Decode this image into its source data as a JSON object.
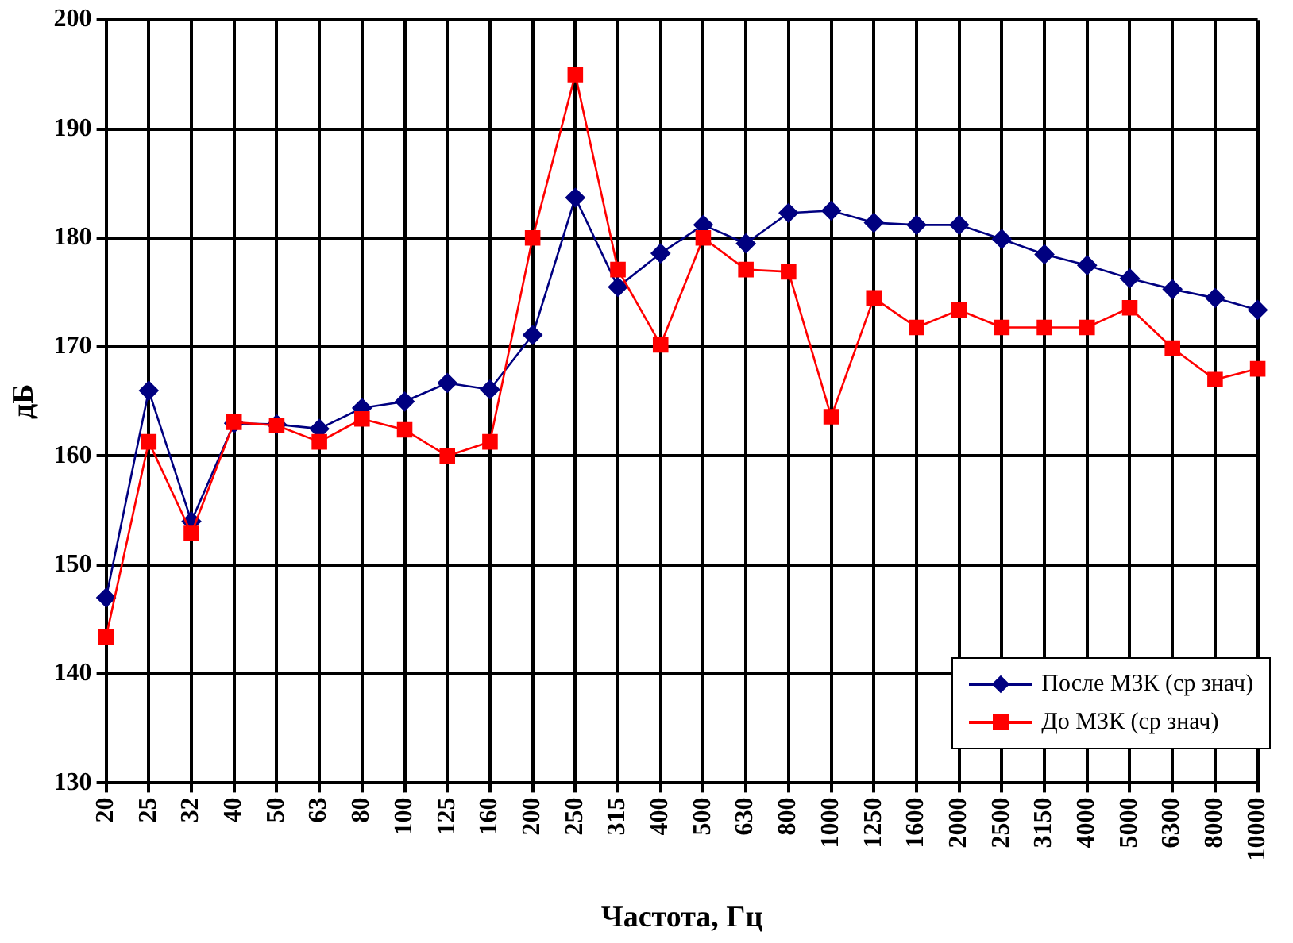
{
  "chart_data": {
    "type": "line",
    "xlabel": "Частота, Гц",
    "ylabel": "дБ",
    "categories": [
      "20",
      "25",
      "32",
      "40",
      "50",
      "63",
      "80",
      "100",
      "125",
      "160",
      "200",
      "250",
      "315",
      "400",
      "500",
      "630",
      "800",
      "1000",
      "1250",
      "1600",
      "2000",
      "2500",
      "3150",
      "4000",
      "5000",
      "6300",
      "8000",
      "10000"
    ],
    "series": [
      {
        "name": "После МЗК (ср знач)",
        "color": "#000080",
        "marker": "diamond",
        "values": [
          147,
          166,
          154,
          163,
          162.9,
          162.5,
          164.4,
          165,
          166.7,
          166.1,
          171.1,
          183.7,
          175.5,
          178.6,
          181.2,
          179.5,
          182.3,
          182.5,
          181.4,
          181.2,
          181.2,
          179.9,
          178.5,
          177.5,
          176.3,
          175.3,
          174.5,
          173.4
        ]
      },
      {
        "name": "До МЗК (ср знач)",
        "color": "#ff0000",
        "marker": "square",
        "values": [
          143.4,
          161.3,
          152.9,
          163.1,
          162.8,
          161.3,
          163.4,
          162.4,
          160,
          161.3,
          180,
          195,
          177.1,
          170.2,
          180,
          177.1,
          176.9,
          163.6,
          174.5,
          171.8,
          173.4,
          171.8,
          171.8,
          171.8,
          173.6,
          169.9,
          167,
          168
        ]
      }
    ],
    "ylim": [
      130,
      200
    ],
    "yticks": [
      130,
      140,
      150,
      160,
      170,
      180,
      190,
      200
    ],
    "grid": true,
    "legend": "bottom right",
    "line_style": "solid"
  }
}
